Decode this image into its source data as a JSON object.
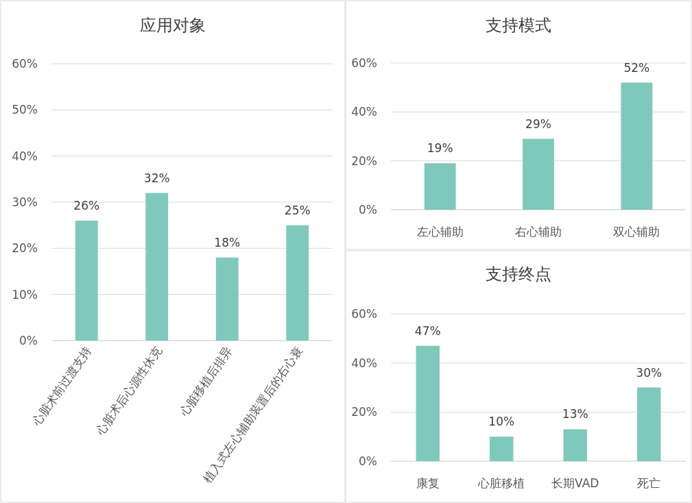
{
  "chart_data": [
    {
      "type": "bar",
      "title": "应用对象",
      "categories": [
        "心脏术前过渡支持",
        "心脏术后心源性休克",
        "心脏移植后排异",
        "植入式左心辅助装置后的右心衰"
      ],
      "values": [
        26,
        32,
        18,
        25
      ],
      "value_labels": [
        "26%",
        "32%",
        "18%",
        "25%"
      ],
      "color": "#7fc8bc",
      "ylim": [
        0,
        60
      ],
      "yticks": [
        {
          "value": 0,
          "label": "0%"
        },
        {
          "value": 10,
          "label": "10%"
        },
        {
          "value": 20,
          "label": "20%"
        },
        {
          "value": 30,
          "label": "30%"
        },
        {
          "value": 40,
          "label": "40%"
        },
        {
          "value": 50,
          "label": "50%"
        },
        {
          "value": 60,
          "label": "60%"
        }
      ],
      "grid": "y"
    },
    {
      "type": "bar",
      "title": "支持模式",
      "categories": [
        "左心辅助",
        "右心辅助",
        "双心辅助"
      ],
      "values": [
        19,
        29,
        52
      ],
      "value_labels": [
        "19%",
        "29%",
        "52%"
      ],
      "color": "#7fc8bc",
      "ylim": [
        0,
        60
      ],
      "yticks": [
        {
          "value": 0,
          "label": "0%"
        },
        {
          "value": 20,
          "label": "20%"
        },
        {
          "value": 40,
          "label": "40%"
        },
        {
          "value": 60,
          "label": "60%"
        }
      ],
      "grid": "y"
    },
    {
      "type": "bar",
      "title": "支持终点",
      "categories": [
        "康复",
        "心脏移植",
        "长期VAD",
        "死亡"
      ],
      "values": [
        47,
        10,
        13,
        30
      ],
      "value_labels": [
        "47%",
        "10%",
        "13%",
        "30%"
      ],
      "color": "#7fc8bc",
      "ylim": [
        0,
        60
      ],
      "yticks": [
        {
          "value": 0,
          "label": "0%"
        },
        {
          "value": 20,
          "label": "20%"
        },
        {
          "value": 40,
          "label": "40%"
        },
        {
          "value": 60,
          "label": "60%"
        }
      ],
      "grid": "y"
    }
  ]
}
